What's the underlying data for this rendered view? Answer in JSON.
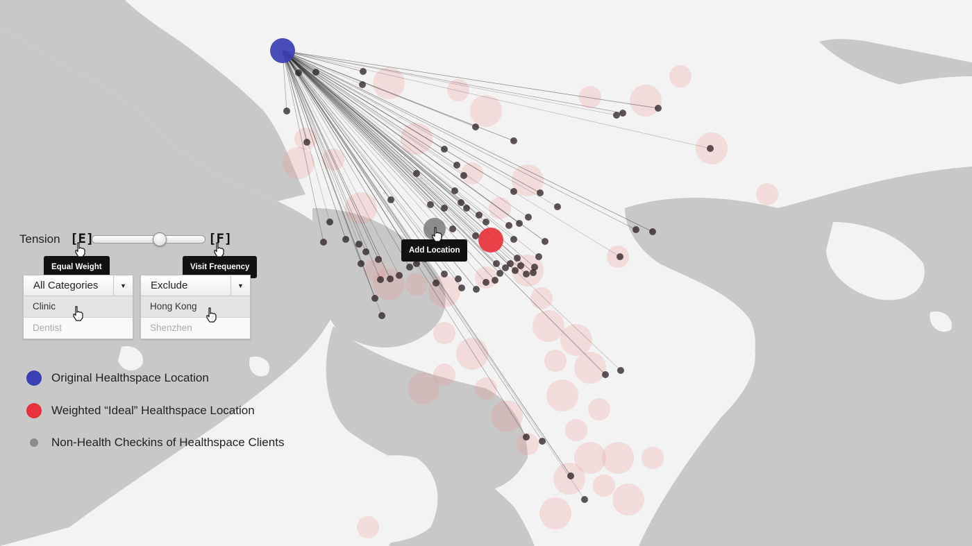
{
  "controls": {
    "tension_label": "Tension",
    "left_key": "[E]",
    "right_key": "[F]",
    "slider_value": 0.6,
    "left_tooltip": "Equal Weight",
    "right_tooltip": "Visit Frequency"
  },
  "map_tooltip": "Add Location",
  "category_dropdown": {
    "selected": "All Categories",
    "options": [
      "Clinic",
      "Dentist"
    ],
    "highlighted": "Clinic"
  },
  "location_dropdown": {
    "selected": "Exclude",
    "options": [
      "Hong Kong",
      "Shenzhen"
    ],
    "highlighted": "Hong Kong"
  },
  "legend": [
    {
      "label": "Original Healthspace Location",
      "color": "#3a3fb5"
    },
    {
      "label": "Weighted “Ideal” Healthspace Location",
      "color": "#e8333a"
    },
    {
      "label": "Non-Health Checkins of Healthspace Clients",
      "color": "#8c8c8c"
    }
  ],
  "colors": {
    "water": "#c8c8c8",
    "land": "#f3f3f3",
    "heat": "#ef8a8a",
    "checkin": "#2a1e22",
    "origin": "#3a3fb5",
    "ideal": "#e8333a"
  }
}
